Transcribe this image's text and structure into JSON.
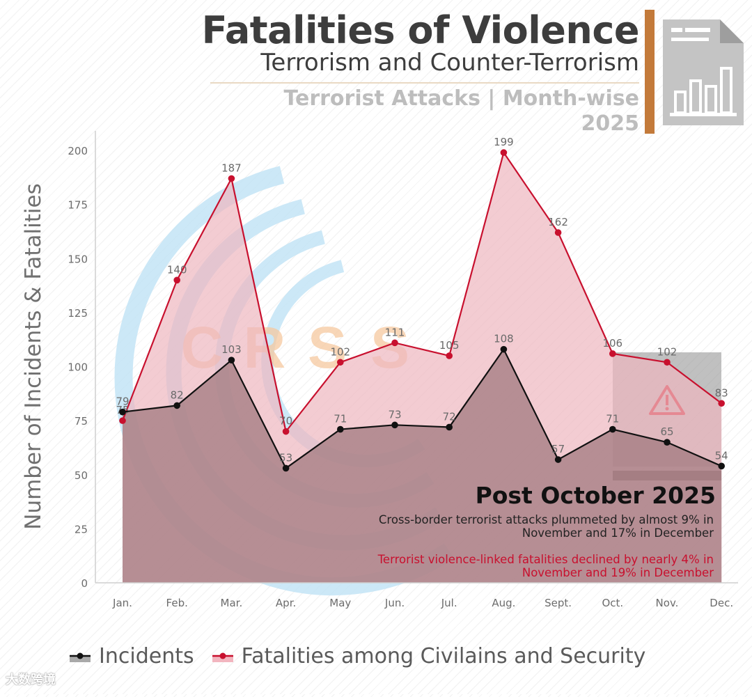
{
  "header": {
    "title": "Fatalities of Violence",
    "subtitle": "Terrorism and Counter-Terrorism",
    "section_line1": "Terrorist Attacks | Month-wise",
    "section_line2": "2025",
    "accent_color": "#c37a3a"
  },
  "watermark": {
    "letters": [
      "C",
      "R",
      "S",
      "S"
    ]
  },
  "chart_data": {
    "type": "area",
    "ylabel": "Number of Incidents & Fatalities",
    "xlabel": "",
    "ylim": [
      0,
      200
    ],
    "yticks": [
      0,
      25,
      50,
      75,
      100,
      125,
      150,
      175,
      200
    ],
    "grid": false,
    "categories": [
      "Jan.",
      "Feb.",
      "Mar.",
      "Apr.",
      "May",
      "Jun.",
      "Jul.",
      "Aug.",
      "Sept.",
      "Oct.",
      "Nov.",
      "Dec."
    ],
    "series": [
      {
        "name": "Fatalities among Civilains and Security",
        "color": "#c8102e",
        "fill": "#eeb6bf",
        "values": [
          75,
          140,
          187,
          70,
          102,
          111,
          105,
          199,
          162,
          106,
          102,
          83
        ]
      },
      {
        "name": "Incidents",
        "color": "#111111",
        "fill": "#a1797f",
        "values": [
          79,
          82,
          103,
          53,
          71,
          73,
          72,
          108,
          57,
          71,
          65,
          54
        ]
      }
    ],
    "highlight": {
      "from": "Oct.",
      "to": "Dec.",
      "label": "Post October 2025"
    },
    "legend_position": "bottom"
  },
  "annotation": {
    "title": "Post October 2025",
    "black_text": "Cross-border terrorist attacks plummeted by almost 9% in November and 17% in December",
    "red_text": "Terrorist violence-linked fatalities declined by nearly 4% in November and 19% in December",
    "icon": "warning-icon"
  },
  "legend": {
    "items": [
      "Incidents",
      "Fatalities among Civilains and Security"
    ]
  },
  "footer": {
    "text": "大数跨境"
  }
}
